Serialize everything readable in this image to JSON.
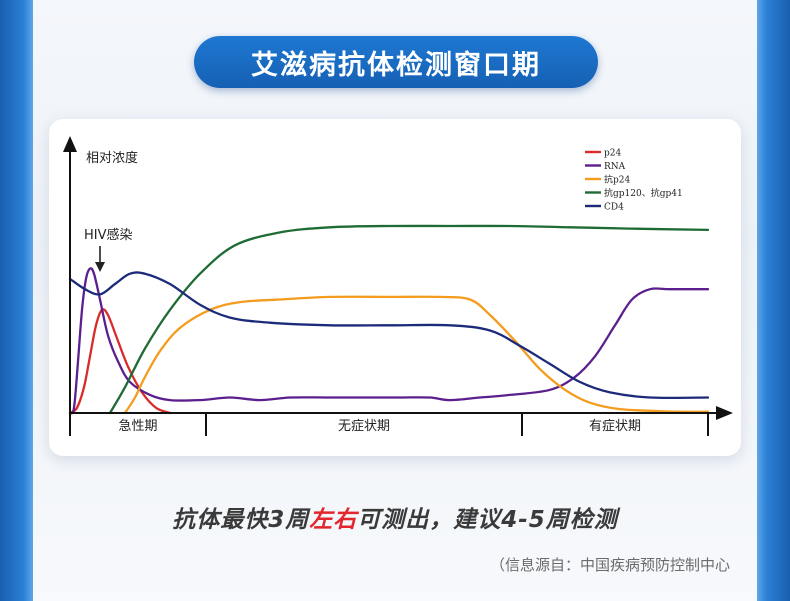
{
  "header": {
    "title": "艾滋病抗体检测窗口期"
  },
  "chart_data": {
    "type": "line",
    "ylabel": "相对浓度",
    "annotation": "HIV感染",
    "phases": [
      {
        "name": "急性期"
      },
      {
        "name": "无症状期"
      },
      {
        "name": "有症状期"
      }
    ],
    "legend_position": "top-right",
    "series": [
      {
        "name": "p24",
        "color": "#d92b2b",
        "points": [
          [
            0,
            0
          ],
          [
            7,
            2
          ],
          [
            14,
            10
          ],
          [
            20,
            22
          ],
          [
            26,
            34
          ],
          [
            32,
            40
          ],
          [
            38,
            38
          ],
          [
            46,
            30
          ],
          [
            58,
            18
          ],
          [
            72,
            8
          ],
          [
            86,
            2
          ],
          [
            100,
            0
          ]
        ]
      },
      {
        "name": "RNA",
        "color": "#5b1f8e",
        "points": [
          [
            0,
            0
          ],
          [
            4,
            2
          ],
          [
            8,
            20
          ],
          [
            12,
            40
          ],
          [
            16,
            52
          ],
          [
            20,
            56
          ],
          [
            24,
            54
          ],
          [
            30,
            44
          ],
          [
            38,
            30
          ],
          [
            48,
            20
          ],
          [
            60,
            12
          ],
          [
            80,
            7
          ],
          [
            100,
            5
          ],
          [
            130,
            5
          ],
          [
            160,
            6
          ],
          [
            190,
            5
          ],
          [
            220,
            6
          ],
          [
            260,
            6
          ],
          [
            300,
            6
          ],
          [
            330,
            6
          ],
          [
            360,
            6
          ],
          [
            380,
            5
          ],
          [
            410,
            6
          ],
          [
            440,
            7
          ],
          [
            480,
            9
          ],
          [
            505,
            14
          ],
          [
            525,
            22
          ],
          [
            545,
            34
          ],
          [
            562,
            44
          ],
          [
            580,
            48
          ],
          [
            600,
            48
          ],
          [
            638,
            48
          ]
        ]
      },
      {
        "name": "抗p24",
        "color": "#f39c1e",
        "points": [
          [
            55,
            0
          ],
          [
            65,
            6
          ],
          [
            75,
            14
          ],
          [
            90,
            24
          ],
          [
            110,
            33
          ],
          [
            140,
            40
          ],
          [
            170,
            43
          ],
          [
            210,
            44
          ],
          [
            260,
            45
          ],
          [
            320,
            45
          ],
          [
            370,
            45
          ],
          [
            400,
            44
          ],
          [
            420,
            38
          ],
          [
            445,
            28
          ],
          [
            470,
            17
          ],
          [
            495,
            9
          ],
          [
            520,
            4
          ],
          [
            550,
            1.5
          ],
          [
            600,
            0.6
          ],
          [
            638,
            0.5
          ]
        ]
      },
      {
        "name": "抗gp120、抗gp41",
        "color": "#1f6b35",
        "points": [
          [
            40,
            0
          ],
          [
            55,
            10
          ],
          [
            75,
            25
          ],
          [
            100,
            40
          ],
          [
            130,
            54
          ],
          [
            165,
            65
          ],
          [
            210,
            70
          ],
          [
            260,
            72
          ],
          [
            320,
            72.5
          ],
          [
            380,
            72.5
          ],
          [
            440,
            72.5
          ],
          [
            500,
            72
          ],
          [
            560,
            71.5
          ],
          [
            638,
            71
          ]
        ]
      },
      {
        "name": "CD4",
        "color": "#1c2a7a",
        "points": [
          [
            0,
            52
          ],
          [
            15,
            48
          ],
          [
            30,
            46
          ],
          [
            45,
            50
          ],
          [
            60,
            54
          ],
          [
            75,
            54
          ],
          [
            100,
            50
          ],
          [
            130,
            42
          ],
          [
            160,
            37
          ],
          [
            200,
            35
          ],
          [
            260,
            34
          ],
          [
            320,
            34
          ],
          [
            380,
            34
          ],
          [
            420,
            32
          ],
          [
            450,
            26
          ],
          [
            480,
            19
          ],
          [
            510,
            12
          ],
          [
            540,
            8
          ],
          [
            580,
            6
          ],
          [
            638,
            6
          ]
        ]
      }
    ]
  },
  "footer": {
    "tagline_prefix": "抗体最快3周",
    "tagline_highlight": "左右",
    "tagline_suffix": "可测出，建议4-5周检测",
    "source": "（信息源自：中国疾病预防控制中心"
  }
}
